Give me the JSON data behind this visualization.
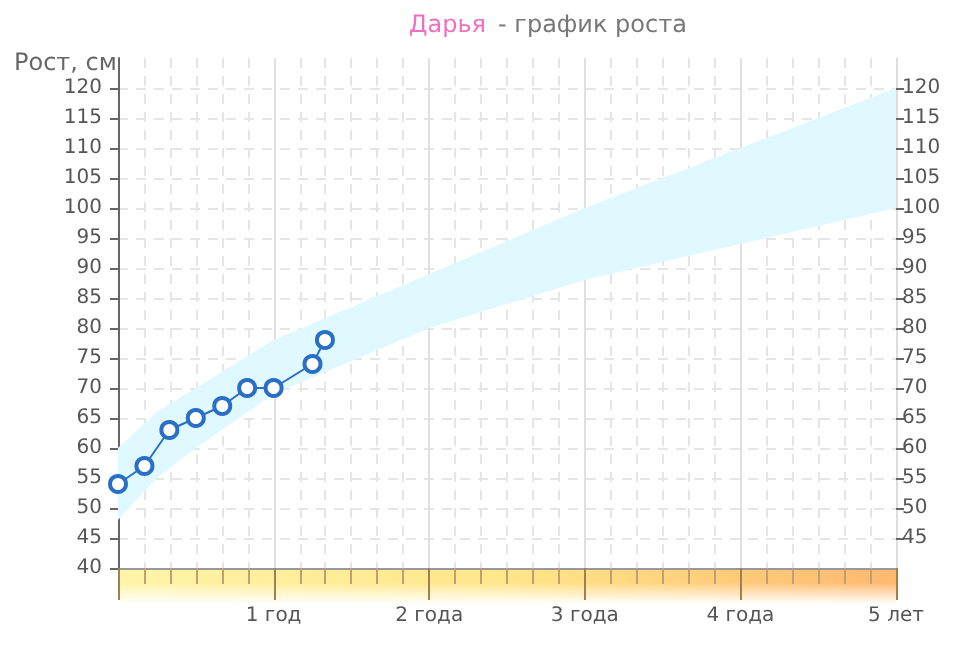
{
  "chart_data": {
    "type": "line",
    "title": "Дарья",
    "subtitle": "- график роста",
    "ylabel": "Рост, см",
    "xlim": [
      0,
      5
    ],
    "xticks": [
      {
        "value": 0,
        "label": null
      },
      {
        "value": 1,
        "label": "1 год"
      },
      {
        "value": 2,
        "label": "2 года"
      },
      {
        "value": 3,
        "label": "3 года"
      },
      {
        "value": 4,
        "label": "4 года"
      },
      {
        "value": 5,
        "label": "5 лет"
      }
    ],
    "ylim": [
      40,
      125
    ],
    "yticks": [
      40,
      45,
      50,
      55,
      60,
      65,
      70,
      75,
      80,
      85,
      90,
      95,
      100,
      105,
      110,
      115,
      120
    ],
    "y2lim": [
      40,
      125
    ],
    "y2ticks": [
      45,
      50,
      55,
      60,
      65,
      70,
      75,
      80,
      85,
      90,
      95,
      100,
      105,
      110,
      115,
      120
    ],
    "grid": true,
    "marker": "circle",
    "line_style": "solid",
    "series": [
      {
        "type": "area",
        "color": "#e0f8ff",
        "x": [
          0,
          0.25,
          0.5,
          1,
          2,
          3,
          4,
          5
        ],
        "values": [
          null,
          null,
          null,
          null,
          null,
          null,
          null,
          null
        ],
        "lower": [
          48,
          55,
          60,
          69,
          80,
          88,
          94,
          100
        ],
        "upper": [
          60,
          66,
          70,
          78,
          89,
          100,
          110,
          120
        ]
      },
      {
        "color": "#2a6fc7",
        "x": [
          0,
          0.17,
          0.33,
          0.5,
          0.67,
          0.83,
          1,
          1.25,
          1.33
        ],
        "values": [
          54,
          57,
          63,
          65,
          67,
          70,
          70,
          74,
          78
        ]
      }
    ]
  }
}
